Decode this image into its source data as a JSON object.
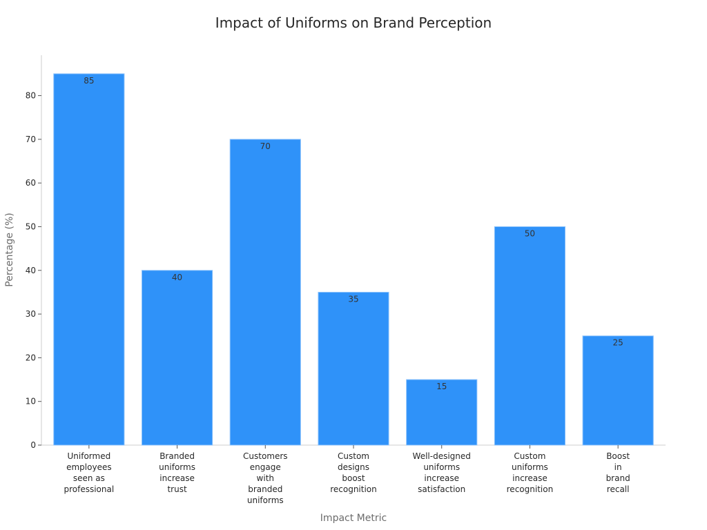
{
  "chart_data": {
    "type": "bar",
    "title": "Impact of Uniforms on Brand Perception",
    "xlabel": "Impact Metric",
    "ylabel": "Percentage (%)",
    "categories": [
      [
        "Uniformed",
        "employees",
        "seen as",
        "professional"
      ],
      [
        "Branded",
        "uniforms",
        "increase",
        "trust"
      ],
      [
        "Customers",
        "engage",
        "with",
        "branded",
        "uniforms"
      ],
      [
        "Custom",
        "designs",
        "boost",
        "recognition"
      ],
      [
        "Well-designed",
        "uniforms",
        "increase",
        "satisfaction"
      ],
      [
        "Custom",
        "uniforms",
        "increase",
        "recognition"
      ],
      [
        "Boost",
        "in",
        "brand",
        "recall"
      ]
    ],
    "values": [
      85,
      40,
      70,
      35,
      15,
      50,
      25
    ],
    "value_labels": [
      "85",
      "40",
      "70",
      "35",
      "15",
      "50",
      "25"
    ],
    "yticks": [
      0,
      10,
      20,
      30,
      40,
      50,
      60,
      70,
      80
    ],
    "ylim": [
      0,
      89.25
    ],
    "grid": false,
    "bar_color": "#2f92f9",
    "bar_edge_color": "#8cc2fb"
  }
}
